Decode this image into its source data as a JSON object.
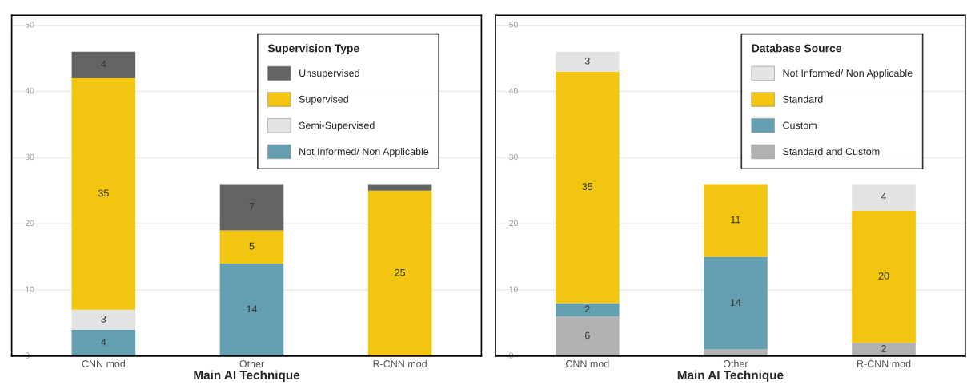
{
  "chart_data": [
    {
      "type": "bar",
      "stacked": true,
      "xlabel": "Main AI Technique",
      "legend_title": "Supervision Type",
      "legend": "top right",
      "grid": "y",
      "ylim": [
        0,
        51.5
      ],
      "yticks": [
        0,
        10,
        20,
        30,
        40,
        50
      ],
      "categories": [
        "CNN mod",
        "Other",
        "R-CNN mod"
      ],
      "series": [
        {
          "name": "Not Informed/ Non Applicable",
          "color": "#639fb0",
          "values": [
            4,
            14,
            0
          ],
          "value_labels": [
            "4",
            "14",
            null
          ]
        },
        {
          "name": "Semi-Supervised",
          "color": "#e3e3e3",
          "values": [
            3,
            0,
            0
          ],
          "value_labels": [
            "3",
            null,
            null
          ]
        },
        {
          "name": "Supervised",
          "color": "#f2c511",
          "values": [
            35,
            5,
            25
          ],
          "value_labels": [
            "35",
            "5",
            "25"
          ]
        },
        {
          "name": "Unsupervised",
          "color": "#646464",
          "values": [
            4,
            7,
            1
          ],
          "value_labels": [
            "4",
            "7",
            null
          ]
        }
      ]
    },
    {
      "type": "bar",
      "stacked": true,
      "xlabel": "Main AI Technique",
      "legend_title": "Database Source",
      "legend": "top right",
      "grid": "y",
      "ylim": [
        0,
        51.5
      ],
      "yticks": [
        0,
        10,
        20,
        30,
        40,
        50
      ],
      "categories": [
        "CNN mod",
        "Other",
        "R-CNN mod"
      ],
      "series": [
        {
          "name": "Standard and Custom",
          "color": "#b1b1b1",
          "values": [
            6,
            1,
            2
          ],
          "value_labels": [
            "6",
            null,
            "2"
          ]
        },
        {
          "name": "Custom",
          "color": "#639fb0",
          "values": [
            2,
            14,
            0
          ],
          "value_labels": [
            "2",
            "14",
            null
          ]
        },
        {
          "name": "Standard",
          "color": "#f2c511",
          "values": [
            35,
            11,
            20
          ],
          "value_labels": [
            "35",
            "11",
            "20"
          ]
        },
        {
          "name": "Not Informed/ Non Applicable",
          "color": "#e3e3e3",
          "values": [
            3,
            0,
            4
          ],
          "value_labels": [
            "3",
            null,
            "4"
          ]
        }
      ]
    }
  ]
}
